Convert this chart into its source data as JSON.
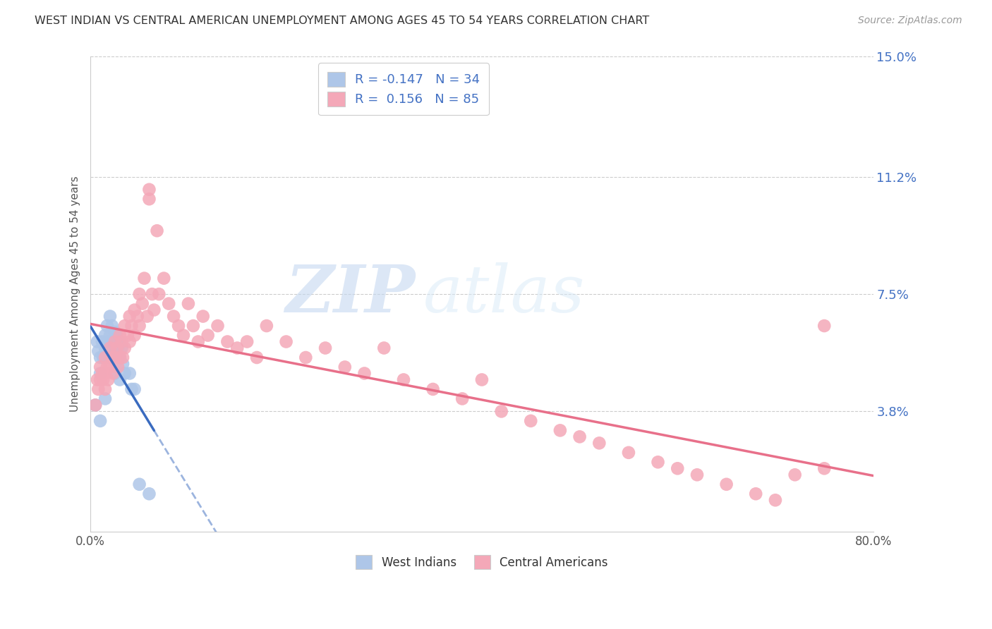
{
  "title": "WEST INDIAN VS CENTRAL AMERICAN UNEMPLOYMENT AMONG AGES 45 TO 54 YEARS CORRELATION CHART",
  "source": "Source: ZipAtlas.com",
  "ylabel": "Unemployment Among Ages 45 to 54 years",
  "xlim": [
    0.0,
    0.8
  ],
  "ylim": [
    0.0,
    0.15
  ],
  "ytick_vals": [
    0.038,
    0.075,
    0.112,
    0.15
  ],
  "ytick_labels": [
    "3.8%",
    "7.5%",
    "11.2%",
    "15.0%"
  ],
  "xtick_vals": [
    0.0,
    0.1,
    0.2,
    0.3,
    0.4,
    0.5,
    0.6,
    0.7,
    0.8
  ],
  "xtick_labels": [
    "0.0%",
    "",
    "",
    "",
    "",
    "",
    "",
    "",
    "80.0%"
  ],
  "west_indian_R": -0.147,
  "west_indian_N": 34,
  "central_american_R": 0.156,
  "central_american_N": 85,
  "west_indian_color": "#aec6e8",
  "central_american_color": "#f4a8b8",
  "west_indian_line_color": "#3a6bbf",
  "central_american_line_color": "#e8708a",
  "watermark_zip": "ZIP",
  "watermark_atlas": "atlas",
  "background_color": "#ffffff",
  "west_indian_x": [
    0.005,
    0.007,
    0.008,
    0.01,
    0.01,
    0.01,
    0.012,
    0.013,
    0.015,
    0.015,
    0.015,
    0.017,
    0.018,
    0.02,
    0.02,
    0.02,
    0.022,
    0.023,
    0.025,
    0.025,
    0.025,
    0.027,
    0.028,
    0.03,
    0.03,
    0.03,
    0.032,
    0.033,
    0.035,
    0.04,
    0.042,
    0.045,
    0.05,
    0.06
  ],
  "west_indian_y": [
    0.04,
    0.06,
    0.057,
    0.055,
    0.05,
    0.035,
    0.06,
    0.055,
    0.062,
    0.058,
    0.042,
    0.065,
    0.06,
    0.068,
    0.062,
    0.055,
    0.065,
    0.06,
    0.063,
    0.058,
    0.05,
    0.062,
    0.058,
    0.06,
    0.055,
    0.048,
    0.058,
    0.053,
    0.05,
    0.05,
    0.045,
    0.045,
    0.015,
    0.012
  ],
  "central_american_x": [
    0.005,
    0.007,
    0.008,
    0.01,
    0.01,
    0.012,
    0.013,
    0.015,
    0.015,
    0.015,
    0.017,
    0.018,
    0.02,
    0.02,
    0.022,
    0.023,
    0.025,
    0.025,
    0.027,
    0.028,
    0.03,
    0.03,
    0.032,
    0.033,
    0.035,
    0.035,
    0.038,
    0.04,
    0.04,
    0.042,
    0.045,
    0.045,
    0.048,
    0.05,
    0.05,
    0.053,
    0.055,
    0.058,
    0.06,
    0.06,
    0.063,
    0.065,
    0.068,
    0.07,
    0.075,
    0.08,
    0.085,
    0.09,
    0.095,
    0.1,
    0.105,
    0.11,
    0.115,
    0.12,
    0.13,
    0.14,
    0.15,
    0.16,
    0.17,
    0.18,
    0.2,
    0.22,
    0.24,
    0.26,
    0.28,
    0.3,
    0.32,
    0.35,
    0.38,
    0.4,
    0.42,
    0.45,
    0.48,
    0.5,
    0.52,
    0.55,
    0.58,
    0.6,
    0.62,
    0.65,
    0.68,
    0.7,
    0.72,
    0.75,
    0.75
  ],
  "central_american_y": [
    0.04,
    0.048,
    0.045,
    0.052,
    0.048,
    0.05,
    0.048,
    0.055,
    0.05,
    0.045,
    0.052,
    0.048,
    0.058,
    0.052,
    0.055,
    0.05,
    0.06,
    0.055,
    0.058,
    0.052,
    0.062,
    0.055,
    0.06,
    0.055,
    0.065,
    0.058,
    0.062,
    0.068,
    0.06,
    0.065,
    0.07,
    0.062,
    0.068,
    0.075,
    0.065,
    0.072,
    0.08,
    0.068,
    0.108,
    0.105,
    0.075,
    0.07,
    0.095,
    0.075,
    0.08,
    0.072,
    0.068,
    0.065,
    0.062,
    0.072,
    0.065,
    0.06,
    0.068,
    0.062,
    0.065,
    0.06,
    0.058,
    0.06,
    0.055,
    0.065,
    0.06,
    0.055,
    0.058,
    0.052,
    0.05,
    0.058,
    0.048,
    0.045,
    0.042,
    0.048,
    0.038,
    0.035,
    0.032,
    0.03,
    0.028,
    0.025,
    0.022,
    0.02,
    0.018,
    0.015,
    0.012,
    0.01,
    0.018,
    0.02,
    0.065
  ]
}
